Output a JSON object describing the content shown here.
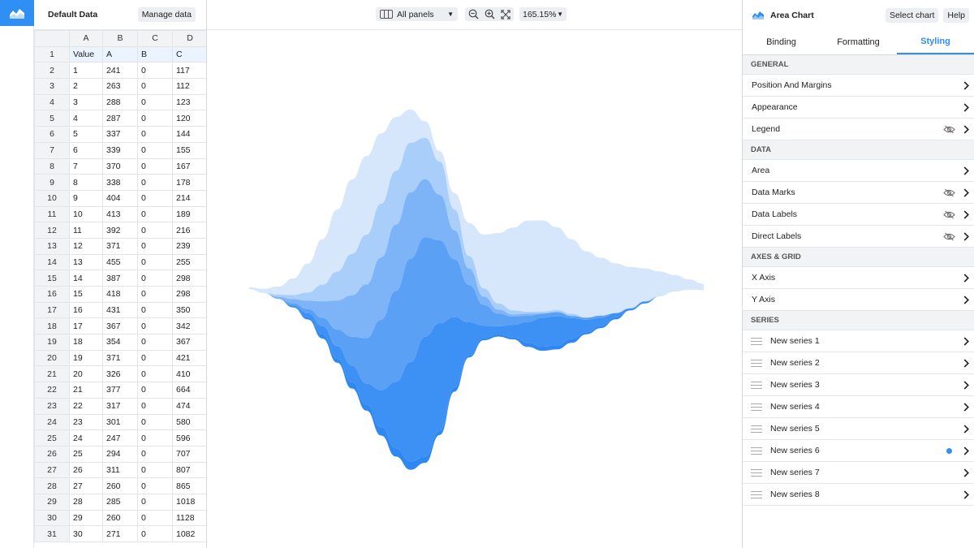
{
  "data_panel": {
    "title": "Default Data",
    "manage_label": "Manage data",
    "columns": [
      "A",
      "B",
      "C",
      "D"
    ],
    "rows": [
      {
        "n": "1",
        "cells": [
          "Value",
          "A",
          "B",
          "C"
        ]
      },
      {
        "n": "2",
        "cells": [
          "1",
          "241",
          "0",
          "117"
        ]
      },
      {
        "n": "3",
        "cells": [
          "2",
          "263",
          "0",
          "112"
        ]
      },
      {
        "n": "4",
        "cells": [
          "3",
          "288",
          "0",
          "123"
        ]
      },
      {
        "n": "5",
        "cells": [
          "4",
          "287",
          "0",
          "120"
        ]
      },
      {
        "n": "6",
        "cells": [
          "5",
          "337",
          "0",
          "144"
        ]
      },
      {
        "n": "7",
        "cells": [
          "6",
          "339",
          "0",
          "155"
        ]
      },
      {
        "n": "8",
        "cells": [
          "7",
          "370",
          "0",
          "167"
        ]
      },
      {
        "n": "9",
        "cells": [
          "8",
          "338",
          "0",
          "178"
        ]
      },
      {
        "n": "10",
        "cells": [
          "9",
          "404",
          "0",
          "214"
        ]
      },
      {
        "n": "11",
        "cells": [
          "10",
          "413",
          "0",
          "189"
        ]
      },
      {
        "n": "12",
        "cells": [
          "11",
          "392",
          "0",
          "216"
        ]
      },
      {
        "n": "13",
        "cells": [
          "12",
          "371",
          "0",
          "239"
        ]
      },
      {
        "n": "14",
        "cells": [
          "13",
          "455",
          "0",
          "255"
        ]
      },
      {
        "n": "15",
        "cells": [
          "14",
          "387",
          "0",
          "298"
        ]
      },
      {
        "n": "16",
        "cells": [
          "15",
          "418",
          "0",
          "298"
        ]
      },
      {
        "n": "17",
        "cells": [
          "16",
          "431",
          "0",
          "350"
        ]
      },
      {
        "n": "18",
        "cells": [
          "17",
          "367",
          "0",
          "342"
        ]
      },
      {
        "n": "19",
        "cells": [
          "18",
          "354",
          "0",
          "367"
        ]
      },
      {
        "n": "20",
        "cells": [
          "19",
          "371",
          "0",
          "421"
        ]
      },
      {
        "n": "21",
        "cells": [
          "20",
          "326",
          "0",
          "410"
        ]
      },
      {
        "n": "22",
        "cells": [
          "21",
          "377",
          "0",
          "664"
        ]
      },
      {
        "n": "23",
        "cells": [
          "22",
          "317",
          "0",
          "474"
        ]
      },
      {
        "n": "24",
        "cells": [
          "23",
          "301",
          "0",
          "580"
        ]
      },
      {
        "n": "25",
        "cells": [
          "24",
          "247",
          "0",
          "596"
        ]
      },
      {
        "n": "26",
        "cells": [
          "25",
          "294",
          "0",
          "707"
        ]
      },
      {
        "n": "27",
        "cells": [
          "26",
          "311",
          "0",
          "807"
        ]
      },
      {
        "n": "28",
        "cells": [
          "27",
          "260",
          "0",
          "865"
        ]
      },
      {
        "n": "29",
        "cells": [
          "28",
          "285",
          "0",
          "1018"
        ]
      },
      {
        "n": "30",
        "cells": [
          "29",
          "260",
          "0",
          "1128"
        ]
      },
      {
        "n": "31",
        "cells": [
          "30",
          "271",
          "0",
          "1082"
        ]
      }
    ]
  },
  "toolbar": {
    "panels_label": "All panels",
    "zoom_label": "165.15%"
  },
  "chart_data": {
    "type": "area",
    "layout": "streamgraph",
    "series": [
      {
        "color": "#d6e7fc",
        "values": [
          1,
          2,
          4,
          8,
          14,
          22,
          30,
          36,
          38,
          34,
          26,
          16,
          8,
          5,
          8,
          16,
          26,
          34,
          40,
          44,
          44,
          40,
          36,
          32,
          28,
          24,
          20,
          16,
          12,
          8,
          5,
          3
        ]
      },
      {
        "color": "#a9cefa",
        "values": [
          0,
          0,
          1,
          2,
          4,
          8,
          14,
          20,
          24,
          26,
          26,
          24,
          20,
          16,
          10,
          6,
          4,
          3,
          2,
          1,
          1,
          1,
          1,
          0,
          0,
          0,
          0,
          0,
          0,
          0,
          0,
          0
        ]
      },
      {
        "color": "#7cb4f7",
        "values": [
          0,
          0,
          1,
          2,
          4,
          8,
          14,
          20,
          26,
          30,
          32,
          32,
          28,
          22,
          14,
          8,
          4,
          2,
          1,
          1,
          0,
          0,
          0,
          0,
          0,
          0,
          0,
          0,
          0,
          0,
          0,
          0
        ]
      },
      {
        "color": "#5aa1f5",
        "values": [
          0,
          0,
          0,
          1,
          2,
          4,
          8,
          14,
          22,
          34,
          44,
          50,
          48,
          40,
          28,
          18,
          10,
          6,
          4,
          3,
          2,
          2,
          1,
          1,
          1,
          0,
          0,
          0,
          0,
          0,
          0,
          0
        ]
      },
      {
        "color": "#3d91f4",
        "values": [
          0,
          0,
          0,
          1,
          2,
          4,
          6,
          8,
          10,
          18,
          32,
          48,
          58,
          52,
          34,
          16,
          6,
          4,
          6,
          10,
          14,
          14,
          10,
          6,
          4,
          2,
          1,
          1,
          0,
          0,
          0,
          0
        ]
      },
      {
        "color": "#2f87f2",
        "values": [
          0,
          0,
          0,
          0,
          1,
          2,
          2,
          3,
          3,
          4,
          4,
          4,
          3,
          2,
          2,
          1,
          1,
          1,
          1,
          2,
          2,
          2,
          2,
          1,
          1,
          1,
          0,
          0,
          0,
          0,
          0,
          0
        ]
      }
    ]
  },
  "right_panel": {
    "chart_name": "Area Chart",
    "select_chart_label": "Select chart",
    "help_label": "Help",
    "tabs": [
      "Binding",
      "Formatting",
      "Styling"
    ],
    "general": {
      "header": "GENERAL",
      "items": [
        "Position And Margins",
        "Appearance",
        "Legend"
      ]
    },
    "data": {
      "header": "DATA",
      "items": [
        "Area",
        "Data Marks",
        "Data Labels",
        "Direct Labels"
      ]
    },
    "axes": {
      "header": "AXES & GRID",
      "items": [
        "X Axis",
        "Y Axis"
      ]
    },
    "series": {
      "header": "SERIES",
      "items": [
        "New series 1",
        "New series 2",
        "New series 3",
        "New series 4",
        "New series 5",
        "New series 6",
        "New series 7",
        "New series 8"
      ]
    },
    "accent_color": "#2f8ff5"
  }
}
